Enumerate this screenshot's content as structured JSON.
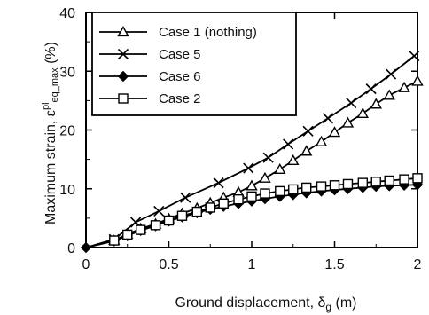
{
  "chart_data": {
    "type": "line",
    "xlabel": "Ground displacement, δg (m)",
    "ylabel": "Maximum strain, εpleq_max (%)",
    "xlim": [
      0,
      2
    ],
    "ylim": [
      0,
      40
    ],
    "x_ticks": [
      "0",
      "0.5",
      "1",
      "1.5",
      "2"
    ],
    "y_ticks": [
      "0",
      "10",
      "20",
      "30",
      "40"
    ],
    "legend_position": "top-left",
    "series": [
      {
        "name": "Case 1 (nothing)",
        "marker": "triangle-open",
        "x": [
          0,
          0.17,
          0.25,
          0.33,
          0.42,
          0.5,
          0.58,
          0.67,
          0.75,
          0.83,
          0.92,
          1.0,
          1.08,
          1.17,
          1.25,
          1.33,
          1.42,
          1.5,
          1.58,
          1.67,
          1.75,
          1.83,
          1.92,
          2.0
        ],
        "y": [
          0,
          1.2,
          2.3,
          3.2,
          4.0,
          4.9,
          5.8,
          6.7,
          7.6,
          8.5,
          9.4,
          10.5,
          11.8,
          13.3,
          14.8,
          16.4,
          18.0,
          19.6,
          21.2,
          22.8,
          24.4,
          25.9,
          27.2,
          28.3
        ]
      },
      {
        "name": "Case 5",
        "marker": "x",
        "x": [
          0,
          0.17,
          0.3,
          0.44,
          0.6,
          0.8,
          0.98,
          1.1,
          1.22,
          1.34,
          1.46,
          1.6,
          1.72,
          1.84,
          1.98
        ],
        "y": [
          0,
          1.4,
          4.3,
          6.2,
          8.5,
          11.0,
          13.5,
          15.3,
          17.6,
          19.8,
          22.0,
          24.6,
          27.0,
          29.5,
          32.6
        ]
      },
      {
        "name": "Case 6",
        "marker": "diamond-filled",
        "x": [
          0,
          0.17,
          0.25,
          0.33,
          0.42,
          0.5,
          0.58,
          0.67,
          0.75,
          0.83,
          0.92,
          1.0,
          1.08,
          1.17,
          1.25,
          1.33,
          1.42,
          1.5,
          1.58,
          1.67,
          1.75,
          1.83,
          1.92,
          2.0
        ],
        "y": [
          0,
          1.1,
          2.0,
          2.9,
          3.7,
          4.5,
          5.2,
          5.9,
          6.5,
          7.0,
          7.5,
          7.9,
          8.3,
          8.7,
          9.0,
          9.3,
          9.6,
          9.8,
          10.0,
          10.2,
          10.4,
          10.5,
          10.6,
          10.7
        ]
      },
      {
        "name": "Case 2",
        "marker": "square-open",
        "x": [
          0,
          0.17,
          0.25,
          0.33,
          0.42,
          0.5,
          0.58,
          0.67,
          0.75,
          0.83,
          0.92,
          1.0,
          1.08,
          1.17,
          1.25,
          1.33,
          1.42,
          1.5,
          1.58,
          1.67,
          1.75,
          1.83,
          1.92,
          2.0
        ],
        "y": [
          0,
          1.2,
          2.2,
          3.0,
          3.8,
          4.6,
          5.4,
          6.1,
          6.8,
          7.5,
          8.2,
          8.7,
          9.2,
          9.6,
          9.9,
          10.2,
          10.4,
          10.6,
          10.8,
          11.0,
          11.2,
          11.4,
          11.6,
          11.8
        ]
      }
    ]
  }
}
